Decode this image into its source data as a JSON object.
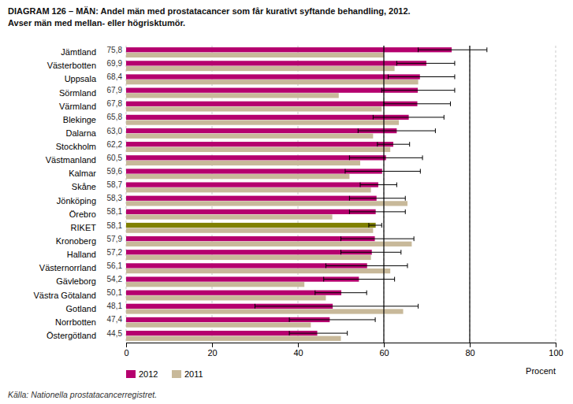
{
  "chart_data": {
    "type": "bar",
    "orientation": "horizontal",
    "title": "DIAGRAM 126 – MÄN: Andel män med prostatacancer som får kurativt syftande behandling, 2012.",
    "subtitle": "Avser män med mellan- eller högrisktumör.",
    "xlabel": "Procent",
    "annotations": [
      "Källa: Nationella prostatacancerregistret."
    ],
    "categories": [
      "Jämtland",
      "Västerbotten",
      "Uppsala",
      "Sörmland",
      "Värmland",
      "Blekinge",
      "Dalarna",
      "Stockholm",
      "Västmanland",
      "Kalmar",
      "Skåne",
      "Jönköping",
      "Örebro",
      "RIKET",
      "Kronoberg",
      "Halland",
      "Västernorrland",
      "Gävleborg",
      "Västra Götaland",
      "Gotland",
      "Norrbotten",
      "Östergötland"
    ],
    "series": [
      {
        "name": "2012",
        "color": "#b5006e",
        "colors": [
          "#b5006e",
          "#b5006e",
          "#b5006e",
          "#b5006e",
          "#b5006e",
          "#b5006e",
          "#b5006e",
          "#b5006e",
          "#b5006e",
          "#b5006e",
          "#b5006e",
          "#b5006e",
          "#b5006e",
          "#808000",
          "#b5006e",
          "#b5006e",
          "#b5006e",
          "#b5006e",
          "#b5006e",
          "#b5006e",
          "#b5006e",
          "#b5006e"
        ],
        "values": [
          75.8,
          69.9,
          68.4,
          67.9,
          67.8,
          65.8,
          63.0,
          62.2,
          60.5,
          59.6,
          58.7,
          58.3,
          58.1,
          58.1,
          57.9,
          57.2,
          56.1,
          54.2,
          50.1,
          48.1,
          47.4,
          44.5
        ],
        "value_labels": [
          "75,8",
          "69,9",
          "68,4",
          "67,9",
          "67,8",
          "65,8",
          "63,0",
          "62,2",
          "60,5",
          "59,6",
          "58,7",
          "58,3",
          "58,1",
          "58,1",
          "57,9",
          "57,2",
          "56,1",
          "54,2",
          "50,1",
          "48,1",
          "47,4",
          "44,5"
        ],
        "ci_low": [
          68.0,
          63.0,
          61.0,
          59.5,
          60.0,
          57.5,
          54.0,
          58.5,
          52.0,
          51.0,
          54.5,
          52.0,
          52.0,
          56.5,
          50.0,
          50.0,
          46.5,
          46.0,
          44.0,
          30.0,
          38.0,
          38.0
        ],
        "ci_high": [
          84.0,
          76.5,
          76.5,
          76.5,
          75.5,
          74.0,
          72.0,
          66.0,
          69.0,
          68.5,
          63.0,
          65.0,
          65.0,
          59.5,
          67.0,
          64.0,
          65.5,
          62.5,
          56.0,
          68.0,
          58.0,
          51.5
        ]
      },
      {
        "name": "2011",
        "color": "#c8b99a",
        "values": [
          60.0,
          62.5,
          68.0,
          49.5,
          59.5,
          63.5,
          57.5,
          61.5,
          54.5,
          52.0,
          57.0,
          65.5,
          48.0,
          57.5,
          66.5,
          57.0,
          61.5,
          41.5,
          46.5,
          64.5,
          43.0,
          50.0
        ]
      }
    ],
    "data_labels": true,
    "xlim": [
      0,
      100
    ],
    "xticks": [
      0,
      20,
      40,
      60,
      80,
      100
    ],
    "grid": true,
    "reference_lines": [
      60,
      80
    ],
    "legend": "lower left"
  }
}
